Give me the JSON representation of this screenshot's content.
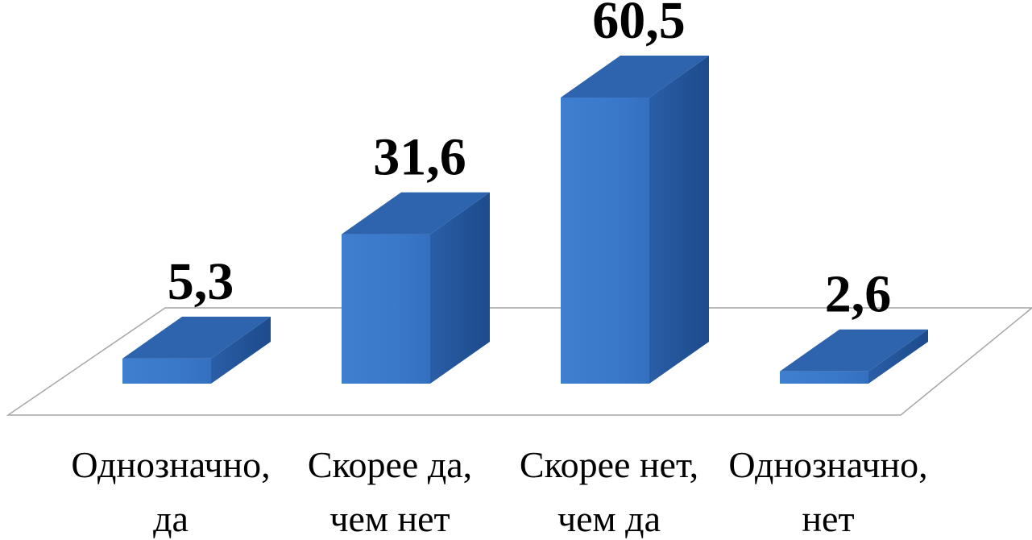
{
  "chart_data": {
    "type": "bar",
    "style": "3d-column",
    "categories": [
      [
        "Однозначно,",
        "да"
      ],
      [
        "Скорее да,",
        "чем нет"
      ],
      [
        "Скорее нет,",
        "чем да"
      ],
      [
        "Однозначно,",
        "нет"
      ]
    ],
    "values": [
      5.3,
      31.6,
      60.5,
      2.6
    ],
    "value_labels": [
      "5,3",
      "31,6",
      "60,5",
      "2,6"
    ],
    "title": "",
    "xlabel": "",
    "ylabel": "",
    "ylim": [
      0,
      60.5
    ],
    "grid": false,
    "legend": "none",
    "colors": {
      "front": "#3a78c9",
      "top": "#2e64ad",
      "side": "#1f4f92",
      "floor_line": "#a6a6a6"
    }
  }
}
